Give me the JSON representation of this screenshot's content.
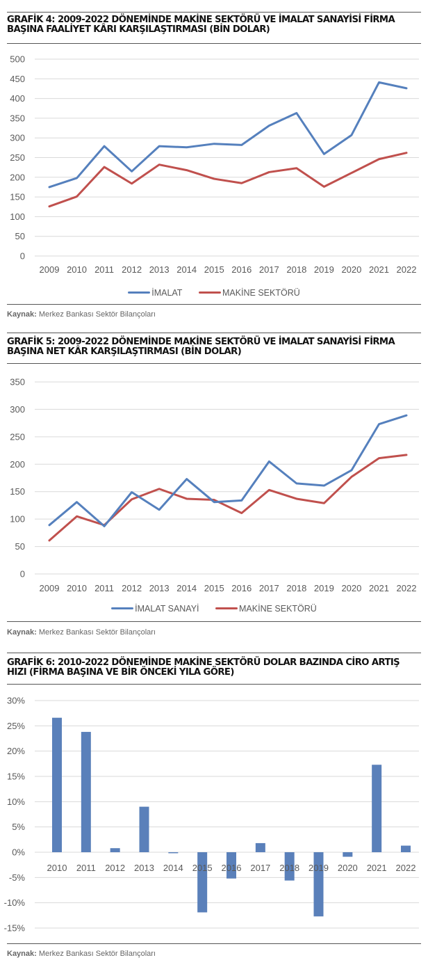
{
  "colors": {
    "imalat": "#5580bd",
    "makine": "#c0504d",
    "bar": "#5a80ba",
    "grid": "#d9d9d9"
  },
  "source": {
    "label": "Kaynak:",
    "text": "Merkez Bankası Sektör Bilançoları"
  },
  "chart_data": [
    {
      "type": "line",
      "title": "GRAFİK 4: 2009-2022 DÖNEMİNDE MAKİNE SEKTÖRÜ VE İMALAT SANAYİSİ FİRMA BAŞINA FAALİYET KÂRI KARŞILAŞTIRMASI (BİN DOLAR)",
      "x": [
        "2009",
        "2010",
        "2011",
        "2012",
        "2013",
        "2014",
        "2015",
        "2016",
        "2017",
        "2018",
        "2019",
        "2020",
        "2021",
        "2022"
      ],
      "yticks": [
        "0",
        "50",
        "100",
        "150",
        "200",
        "250",
        "300",
        "350",
        "400",
        "450",
        "500"
      ],
      "ylim": [
        0,
        500
      ],
      "grid": true,
      "legend_position": "bottom",
      "series": [
        {
          "name": "İMALAT",
          "values": [
            175,
            198,
            279,
            215,
            279,
            276,
            285,
            282,
            331,
            363,
            259,
            307,
            441,
            426
          ]
        },
        {
          "name": "MAKİNE SEKTÖRÜ",
          "values": [
            126,
            151,
            226,
            184,
            232,
            218,
            196,
            185,
            213,
            223,
            176,
            211,
            246,
            262
          ]
        }
      ]
    },
    {
      "type": "line",
      "title": "GRAFİK 5: 2009-2022 DÖNEMİNDE MAKİNE SEKTÖRÜ VE İMALAT SANAYİSİ FİRMA BAŞINA NET KÂR KARŞILAŞTIRMASI (BİN DOLAR)",
      "x": [
        "2009",
        "2010",
        "2011",
        "2012",
        "2013",
        "2014",
        "2015",
        "2016",
        "2017",
        "2018",
        "2019",
        "2020",
        "2021",
        "2022"
      ],
      "yticks": [
        "0",
        "50",
        "100",
        "150",
        "200",
        "250",
        "300",
        "350"
      ],
      "ylim": [
        0,
        350
      ],
      "grid": true,
      "legend_position": "bottom",
      "series": [
        {
          "name": "İMALAT SANAYİ",
          "values": [
            89,
            131,
            87,
            149,
            117,
            173,
            131,
            134,
            205,
            165,
            161,
            189,
            273,
            289
          ]
        },
        {
          "name": "MAKİNE SEKTÖRÜ",
          "values": [
            61,
            105,
            89,
            136,
            155,
            137,
            135,
            111,
            153,
            137,
            129,
            177,
            211,
            217
          ]
        }
      ]
    },
    {
      "type": "bar",
      "title": "GRAFİK 6: 2010-2022 DÖNEMİNDE MAKİNE SEKTÖRÜ DOLAR BAZINDA CİRO ARTIŞ HIZI (FİRMA BAŞINA VE BİR ÖNCEKİ YILA GÖRE)",
      "categories": [
        "2010",
        "2011",
        "2012",
        "2013",
        "2014",
        "2015",
        "2016",
        "2017",
        "2018",
        "2019",
        "2020",
        "2021",
        "2022"
      ],
      "values": [
        26.6,
        23.8,
        0.8,
        9.0,
        -0.2,
        -11.9,
        -5.2,
        1.8,
        -5.6,
        -12.7,
        -0.9,
        17.3,
        1.3
      ],
      "unit": "%",
      "yticks": [
        "-15%",
        "-10%",
        "-5%",
        "0%",
        "5%",
        "10%",
        "15%",
        "20%",
        "25%",
        "30%"
      ],
      "ylim": [
        -15,
        30
      ],
      "grid": true
    }
  ]
}
